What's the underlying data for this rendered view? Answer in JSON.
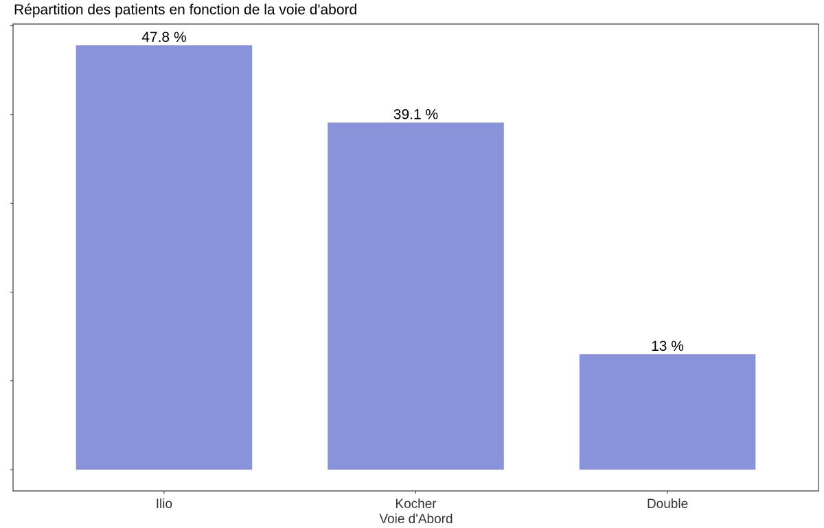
{
  "chart_data": {
    "type": "bar",
    "title": "Répartition des patients en fonction de la voie d'abord",
    "xlabel": "Voie d'Abord",
    "ylabel": "",
    "categories": [
      "Ilio",
      "Kocher",
      "Double"
    ],
    "values": [
      47.8,
      39.1,
      13
    ],
    "data_labels": [
      "47.8 %",
      "39.1 %",
      "13 %"
    ],
    "ylim": [
      -2.4,
      50.2
    ],
    "y_tick_values": [
      0,
      10,
      20,
      30,
      40,
      50
    ],
    "y_tick_labels_visible": false,
    "grid": false,
    "legend": "none",
    "bar_color": "#8893DA",
    "frame_color": "#333333"
  }
}
